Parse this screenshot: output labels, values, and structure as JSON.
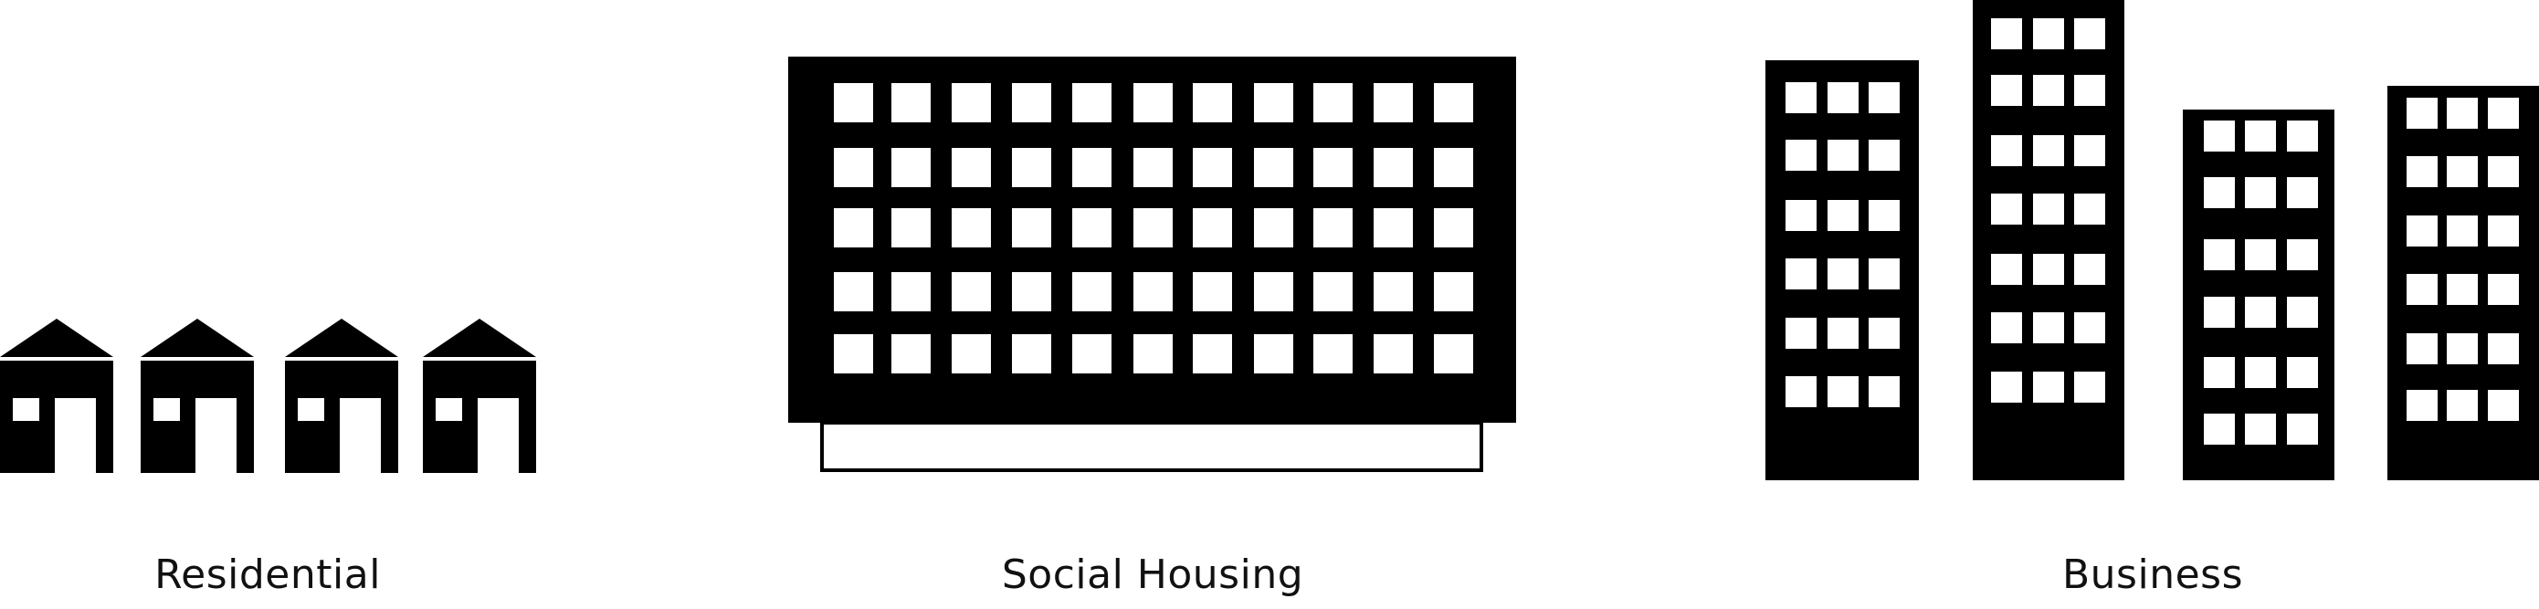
{
  "labels": {
    "residential": "Residential",
    "social_housing": "Social Housing",
    "business": "Business"
  },
  "colors": {
    "fill": "#000000",
    "window": "#ffffff",
    "background": "#ffffff"
  },
  "icons": {
    "residential": "house-icon",
    "social_housing": "apartment-block-icon",
    "business": "office-tower-icon"
  }
}
